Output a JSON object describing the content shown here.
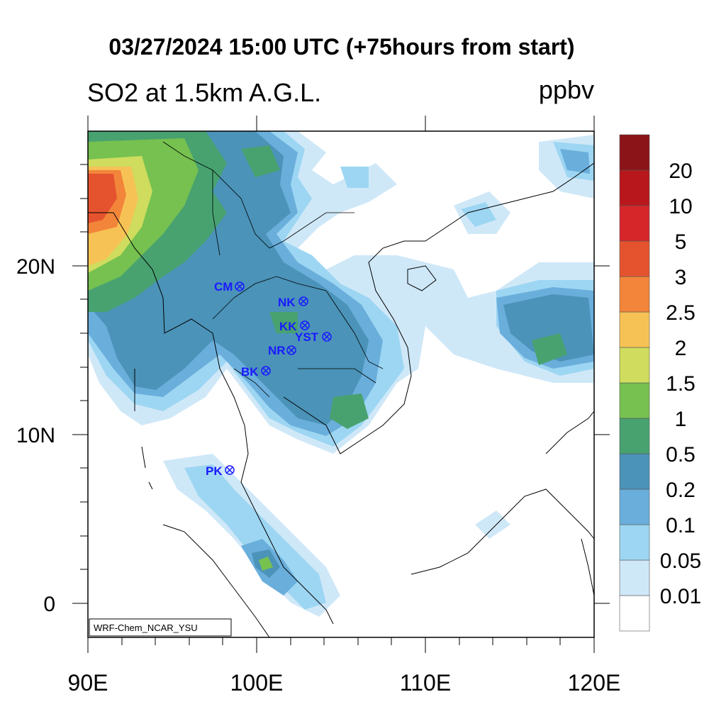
{
  "header": {
    "title": "03/27/2024 15:00 UTC (+75hours from start)",
    "subtitle": "SO2 at 1.5km A.G.L.",
    "units": "ppbv"
  },
  "map": {
    "lat_labels": [
      "20N",
      "10N",
      "0"
    ],
    "lon_labels": [
      "90E",
      "100E",
      "110E",
      "120E"
    ],
    "credit": "WRF-Chem_NCAR_YSU",
    "sites": [
      {
        "code": "CM"
      },
      {
        "code": "NK"
      },
      {
        "code": "KK"
      },
      {
        "code": "YST"
      },
      {
        "code": "NR"
      },
      {
        "code": "BK"
      },
      {
        "code": "PK"
      }
    ]
  },
  "colorbar": {
    "levels": [
      "0.01",
      "0.05",
      "0.1",
      "0.2",
      "0.5",
      "1",
      "1.5",
      "2",
      "2.5",
      "3",
      "5",
      "10",
      "20"
    ],
    "colors": [
      "#ffffff",
      "#cfe8f8",
      "#9dd6f2",
      "#6aaedc",
      "#4b93b8",
      "#48a270",
      "#76c150",
      "#cfdc5e",
      "#f7c255",
      "#f2853a",
      "#e5532e",
      "#d7262a",
      "#b8181c",
      "#8b1419"
    ]
  }
}
